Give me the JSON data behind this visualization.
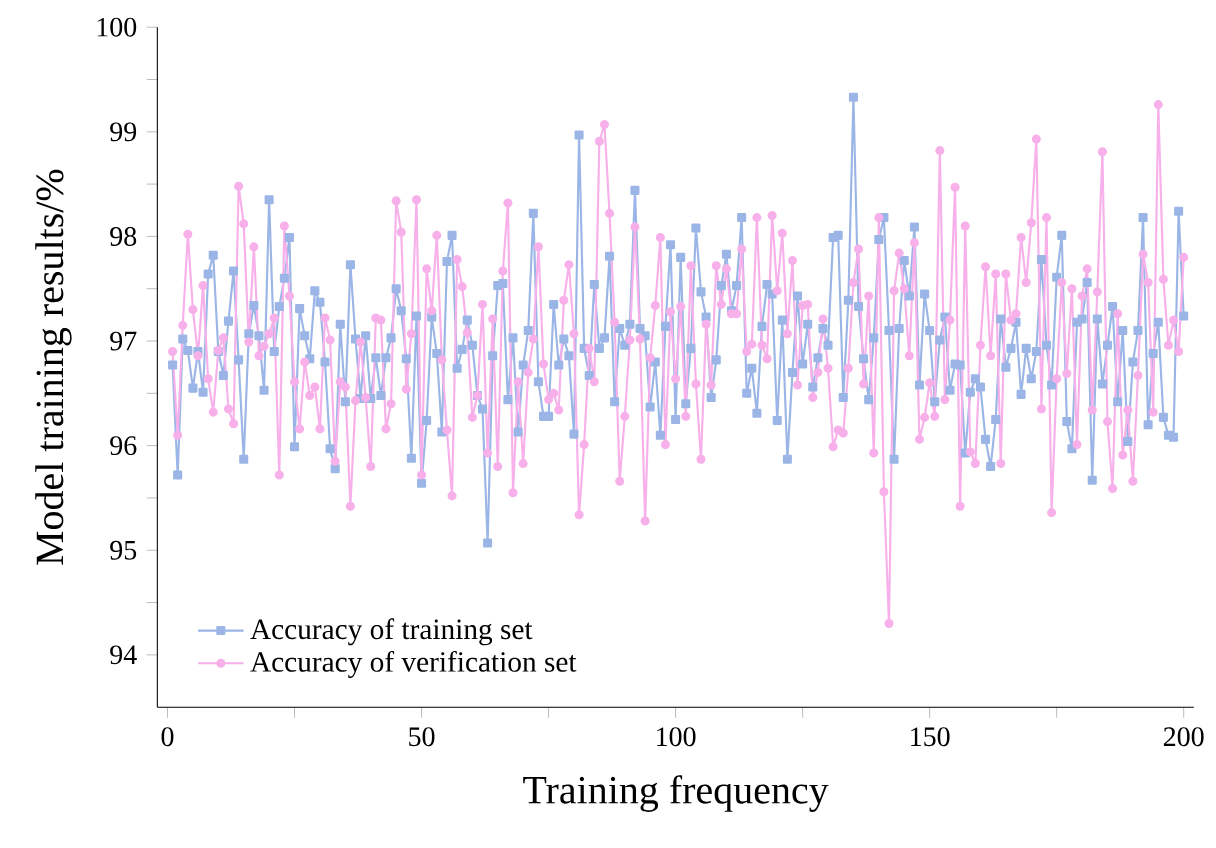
{
  "chart_data": {
    "type": "line",
    "xlabel": "Training frequency",
    "ylabel": "Model training results/%",
    "x": [
      1,
      2,
      3,
      4,
      5,
      6,
      7,
      8,
      9,
      10,
      11,
      12,
      13,
      14,
      15,
      16,
      17,
      18,
      19,
      20,
      21,
      22,
      23,
      24,
      25,
      26,
      27,
      28,
      29,
      30,
      31,
      32,
      33,
      34,
      35,
      36,
      37,
      38,
      39,
      40,
      41,
      42,
      43,
      44,
      45,
      46,
      47,
      48,
      49,
      50,
      51,
      52,
      53,
      54,
      55,
      56,
      57,
      58,
      59,
      60,
      61,
      62,
      63,
      64,
      65,
      66,
      67,
      68,
      69,
      70,
      71,
      72,
      73,
      74,
      75,
      76,
      77,
      78,
      79,
      80,
      81,
      82,
      83,
      84,
      85,
      86,
      87,
      88,
      89,
      90,
      91,
      92,
      93,
      94,
      95,
      96,
      97,
      98,
      99,
      100,
      101,
      102,
      103,
      104,
      105,
      106,
      107,
      108,
      109,
      110,
      111,
      112,
      113,
      114,
      115,
      116,
      117,
      118,
      119,
      120,
      121,
      122,
      123,
      124,
      125,
      126,
      127,
      128,
      129,
      130,
      131,
      132,
      133,
      134,
      135,
      136,
      137,
      138,
      139,
      140,
      141,
      142,
      143,
      144,
      145,
      146,
      147,
      148,
      149,
      150,
      151,
      152,
      153,
      154,
      155,
      156,
      157,
      158,
      159,
      160,
      161,
      162,
      163,
      164,
      165,
      166,
      167,
      168,
      169,
      170,
      171,
      172,
      173,
      174,
      175,
      176,
      177,
      178,
      179,
      180,
      181,
      182,
      183,
      184,
      185,
      186,
      187,
      188,
      189,
      190,
      191,
      192,
      193,
      194,
      195,
      196,
      197,
      198,
      199,
      200
    ],
    "series": [
      {
        "name": "Accuracy of training set",
        "color": "#9ab5e6",
        "marker": "square",
        "values": [
          96.77,
          95.72,
          97.02,
          96.91,
          96.55,
          96.9,
          96.51,
          97.64,
          97.82,
          96.9,
          96.67,
          97.19,
          97.67,
          96.82,
          95.87,
          97.07,
          97.34,
          97.05,
          96.53,
          98.35,
          96.9,
          97.33,
          97.6,
          97.99,
          95.99,
          97.31,
          97.05,
          96.83,
          97.48,
          97.37,
          96.8,
          95.97,
          95.78,
          97.16,
          96.42,
          97.73,
          97.02,
          96.45,
          97.05,
          96.45,
          96.84,
          96.48,
          96.84,
          97.03,
          97.5,
          97.29,
          96.83,
          95.88,
          97.24,
          95.64,
          96.24,
          97.23,
          96.88,
          96.13,
          97.76,
          98.01,
          96.74,
          96.92,
          97.2,
          96.96,
          96.48,
          96.35,
          95.07,
          96.86,
          97.53,
          97.55,
          96.44,
          97.03,
          96.13,
          96.77,
          97.1,
          98.22,
          96.61,
          96.28,
          96.28,
          97.35,
          96.77,
          97.02,
          96.86,
          96.11,
          98.97,
          96.93,
          96.67,
          97.54,
          96.93,
          97.03,
          97.81,
          96.42,
          97.12,
          96.96,
          97.16,
          98.44,
          97.12,
          97.05,
          96.37,
          96.8,
          96.1,
          97.14,
          97.92,
          96.25,
          97.8,
          96.4,
          96.93,
          98.08,
          97.47,
          97.23,
          96.46,
          96.82,
          97.53,
          97.83,
          97.29,
          97.53,
          98.18,
          96.5,
          96.74,
          96.31,
          97.14,
          97.54,
          97.45,
          96.24,
          97.2,
          95.87,
          96.7,
          97.43,
          96.78,
          97.16,
          96.56,
          96.84,
          97.12,
          96.96,
          97.99,
          98.01,
          96.46,
          97.39,
          99.33,
          97.33,
          96.83,
          96.44,
          97.03,
          97.97,
          98.18,
          97.1,
          95.87,
          97.12,
          97.77,
          97.43,
          98.09,
          96.58,
          97.45,
          97.1,
          96.42,
          97.01,
          97.23,
          96.53,
          96.78,
          96.77,
          95.93,
          96.51,
          96.64,
          96.56,
          96.06,
          95.8,
          96.25,
          97.21,
          96.75,
          96.93,
          97.18,
          96.49,
          96.93,
          96.64,
          96.9,
          97.78,
          96.96,
          96.58,
          97.61,
          98.01,
          96.23,
          95.97,
          97.18,
          97.21,
          97.56,
          95.67,
          97.21,
          96.59,
          96.96,
          97.33,
          96.42,
          97.1,
          96.04,
          96.8,
          97.1,
          98.18,
          96.2,
          96.88,
          97.18,
          96.27,
          96.1,
          96.08,
          98.24,
          97.24
        ]
      },
      {
        "name": "Accuracy of verification set",
        "color": "#f7b0ea",
        "marker": "circle",
        "values": [
          96.9,
          96.1,
          97.15,
          98.02,
          97.3,
          96.86,
          97.53,
          96.64,
          96.32,
          96.91,
          97.03,
          96.35,
          96.21,
          98.48,
          98.12,
          96.99,
          97.9,
          96.86,
          96.95,
          97.07,
          97.22,
          95.72,
          98.1,
          97.43,
          96.61,
          96.16,
          96.8,
          96.48,
          96.56,
          96.16,
          97.22,
          97.01,
          95.85,
          96.61,
          96.56,
          95.42,
          96.43,
          96.99,
          96.46,
          95.8,
          97.22,
          97.2,
          96.16,
          96.4,
          98.34,
          98.04,
          96.54,
          97.07,
          98.35,
          95.72,
          97.69,
          97.29,
          98.01,
          96.82,
          96.15,
          95.52,
          97.78,
          97.52,
          97.08,
          96.27,
          96.48,
          97.35,
          95.93,
          97.21,
          95.8,
          97.67,
          98.32,
          95.55,
          96.61,
          95.83,
          96.7,
          97.02,
          97.9,
          96.78,
          96.44,
          96.5,
          96.34,
          97.39,
          97.73,
          97.07,
          95.34,
          96.01,
          96.93,
          96.61,
          98.91,
          99.07,
          98.22,
          97.18,
          95.66,
          96.28,
          97.01,
          98.09,
          97.02,
          95.28,
          96.84,
          97.34,
          97.99,
          96.01,
          97.28,
          96.64,
          97.33,
          96.28,
          97.72,
          96.59,
          95.87,
          97.16,
          96.58,
          97.72,
          97.35,
          97.69,
          97.26,
          97.26,
          97.88,
          96.9,
          96.97,
          98.18,
          96.96,
          96.83,
          98.2,
          97.48,
          98.03,
          97.07,
          97.77,
          96.58,
          97.34,
          97.35,
          96.46,
          96.7,
          97.21,
          96.74,
          95.99,
          96.15,
          96.12,
          96.74,
          97.56,
          97.88,
          96.59,
          97.43,
          95.93,
          98.18,
          95.56,
          94.3,
          97.48,
          97.84,
          97.5,
          96.86,
          97.94,
          96.06,
          96.27,
          96.6,
          96.28,
          98.82,
          96.44,
          97.2,
          98.47,
          95.42,
          98.1,
          95.94,
          95.83,
          96.96,
          97.71,
          96.86,
          97.64,
          95.83,
          97.64,
          97.2,
          97.26,
          97.99,
          97.56,
          98.13,
          98.93,
          96.35,
          98.18,
          95.36,
          96.64,
          97.56,
          96.69,
          97.5,
          96.01,
          97.43,
          97.69,
          96.34,
          97.47,
          98.81,
          96.23,
          95.59,
          97.26,
          95.91,
          96.34,
          95.66,
          96.67,
          97.83,
          97.56,
          96.32,
          99.26,
          97.59,
          96.96,
          97.2,
          96.9,
          97.8
        ]
      }
    ],
    "xlim": [
      -2,
      202
    ],
    "ylim": [
      93.5,
      100
    ],
    "xticks": [
      0,
      {
        "value": 25,
        "label": null
      },
      50,
      {
        "value": 75,
        "label": null
      },
      100,
      {
        "value": 125,
        "label": null
      },
      150,
      {
        "value": 175,
        "label": null
      },
      200
    ],
    "yticks": [
      94,
      {
        "value": 94.5,
        "label": null
      },
      95,
      {
        "value": 95.5,
        "label": null
      },
      96,
      {
        "value": 96.5,
        "label": null
      },
      97,
      {
        "value": 97.5,
        "label": null
      },
      98,
      {
        "value": 98.5,
        "label": null
      },
      99,
      {
        "value": 99.5,
        "label": null
      },
      100
    ],
    "grid": false,
    "legend": "bottom left",
    "line_style": "solid"
  }
}
